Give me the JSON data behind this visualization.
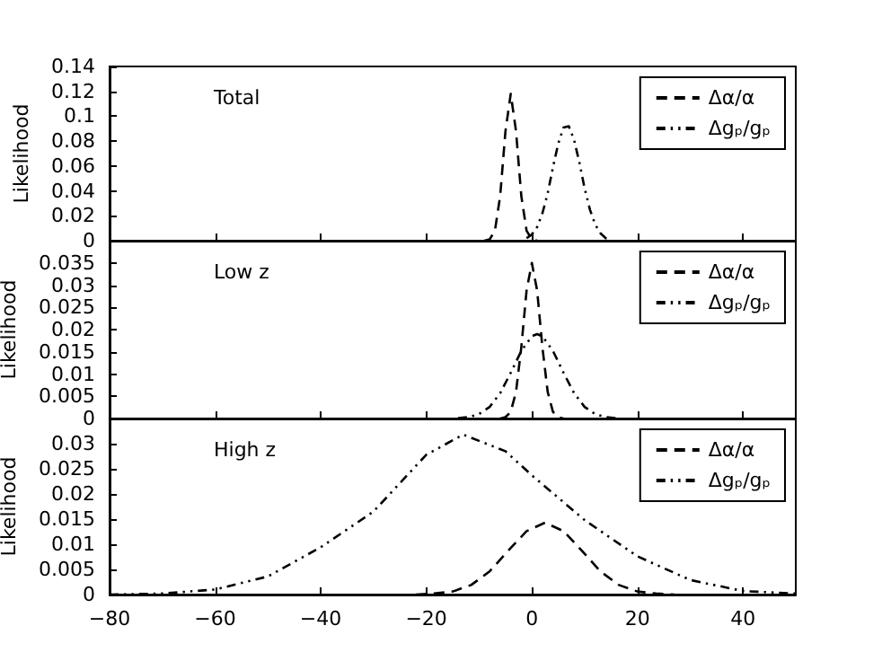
{
  "chart_data": [
    {
      "type": "line",
      "ylabel": "Likelihood",
      "annotations": [
        "Total"
      ],
      "xlim": [
        -80,
        50
      ],
      "xticks": [
        -80,
        -60,
        -40,
        -20,
        0,
        20,
        40
      ],
      "ylim": [
        0,
        0.14
      ],
      "yticks": [
        0,
        0.02,
        0.04,
        0.06,
        0.08,
        0.1,
        0.12,
        0.14
      ],
      "tick_labels": "y",
      "legend": "top right",
      "grid": false,
      "marker": "none",
      "series": [
        {
          "name": "Δα/α",
          "color": "#000000",
          "line_style": "dashed",
          "x": [
            -9,
            -8,
            -7,
            -6,
            -5,
            -4,
            -3,
            -2,
            -1,
            0,
            1
          ],
          "values": [
            0,
            0.001,
            0.008,
            0.036,
            0.088,
            0.118,
            0.088,
            0.036,
            0.008,
            0.001,
            0
          ]
        },
        {
          "name": "Δgₚ/gₚ",
          "color": "#000000",
          "line_style": "dotted",
          "x": [
            -1,
            0,
            1,
            2,
            3,
            4,
            5,
            6,
            7,
            8,
            9,
            10,
            11,
            12,
            13,
            14,
            15
          ],
          "values": [
            0.002,
            0.005,
            0.011,
            0.022,
            0.038,
            0.059,
            0.078,
            0.091,
            0.092,
            0.081,
            0.063,
            0.042,
            0.025,
            0.013,
            0.006,
            0.002,
            0.001
          ]
        }
      ]
    },
    {
      "type": "line",
      "ylabel": "Likelihood",
      "annotations": [
        "Low z"
      ],
      "xlim": [
        -80,
        50
      ],
      "xticks": [
        -80,
        -60,
        -40,
        -20,
        0,
        20,
        40
      ],
      "ylim": [
        0,
        0.04
      ],
      "yticks": [
        0,
        0.005,
        0.01,
        0.015,
        0.02,
        0.025,
        0.03,
        0.035,
        {
          "value": 0.04,
          "label": null
        }
      ],
      "tick_labels": "y",
      "legend": "top right",
      "grid": false,
      "marker": "none",
      "series": [
        {
          "name": "Δα/α",
          "color": "#000000",
          "line_style": "dashed",
          "x": [
            -6,
            -5,
            -4,
            -3,
            -2,
            -1,
            0,
            1,
            2,
            3,
            4,
            5,
            6
          ],
          "values": [
            0,
            0.0003,
            0.0015,
            0.006,
            0.016,
            0.0288,
            0.035,
            0.0288,
            0.016,
            0.006,
            0.0015,
            0.0003,
            0
          ]
        },
        {
          "name": "Δgₚ/gₚ",
          "color": "#000000",
          "line_style": "dotted",
          "x": [
            -14,
            -12,
            -10,
            -8,
            -6,
            -4,
            -2,
            0,
            1,
            2,
            4,
            6,
            8,
            10,
            12,
            14,
            16
          ],
          "values": [
            0.0001,
            0.0003,
            0.001,
            0.0026,
            0.0057,
            0.0103,
            0.0152,
            0.0185,
            0.019,
            0.0185,
            0.0152,
            0.0103,
            0.0057,
            0.0026,
            0.001,
            0.0003,
            0.0001
          ]
        }
      ]
    },
    {
      "type": "line",
      "ylabel": "Likelihood",
      "annotations": [
        "High z"
      ],
      "xlim": [
        -80,
        50
      ],
      "xticks": [
        -80,
        -60,
        -40,
        -20,
        0,
        20,
        40
      ],
      "ylim": [
        0,
        0.035
      ],
      "yticks": [
        0,
        0.005,
        0.01,
        0.015,
        0.02,
        0.025,
        0.03,
        {
          "value": 0.035,
          "label": null
        }
      ],
      "legend": "top right",
      "grid": false,
      "marker": "none",
      "series": [
        {
          "name": "Δα/α",
          "color": "#000000",
          "line_style": "dashed",
          "x": [
            -22,
            -18.5,
            -15,
            -11.5,
            -8,
            -4.5,
            -1,
            2.5,
            6,
            9.5,
            13,
            16.5,
            20,
            23.5,
            27
          ],
          "values": [
            0,
            0.0002,
            0.0006,
            0.0019,
            0.0046,
            0.0087,
            0.0126,
            0.0143,
            0.0126,
            0.0087,
            0.0046,
            0.0019,
            0.0006,
            0.0002,
            0
          ]
        },
        {
          "name": "Δgₚ/gₚ",
          "color": "#000000",
          "line_style": "dotted",
          "x": [
            -80,
            -70,
            -60,
            -50,
            -40,
            -30,
            -20,
            -13,
            -5,
            0,
            10,
            20,
            30,
            40,
            50
          ],
          "values": [
            0,
            0.0002,
            0.001,
            0.0036,
            0.0094,
            0.0165,
            0.0278,
            0.0318,
            0.0285,
            0.0237,
            0.0148,
            0.0076,
            0.0029,
            0.0007,
            0.0002
          ]
        }
      ]
    }
  ]
}
